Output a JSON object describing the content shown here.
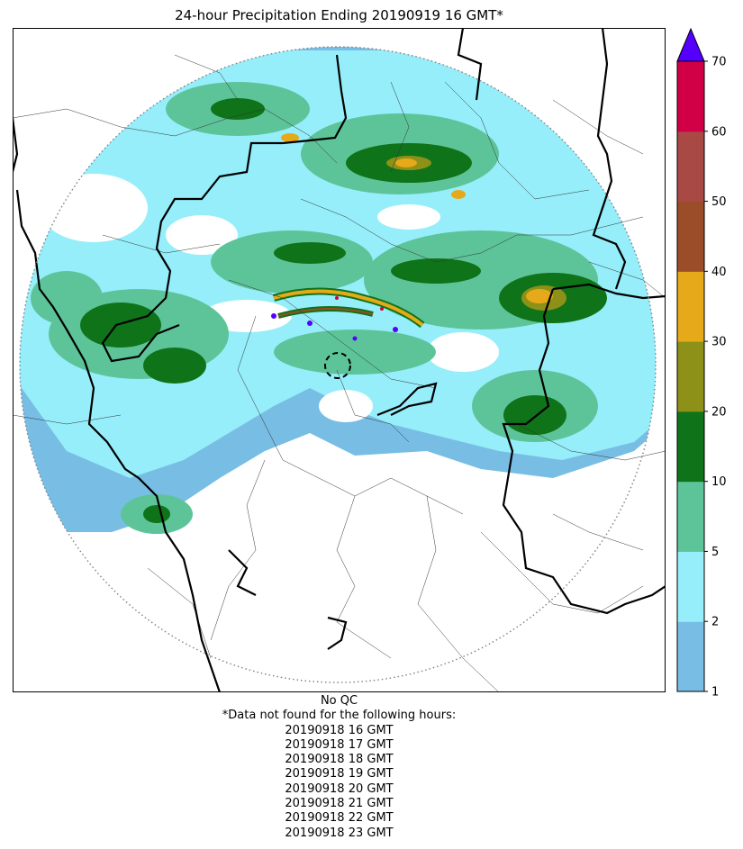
{
  "title": "24-hour Precipitation Ending 20190919 16 GMT*",
  "map": {
    "qc_note": "No QC",
    "missing_note": "*Data not found for the following hours:",
    "missing_hours": [
      "20190918 16 GMT",
      "20190918 17 GMT",
      "20190918 18 GMT",
      "20190918 19 GMT",
      "20190918 20 GMT",
      "20190918 21 GMT",
      "20190918 22 GMT",
      "20190918 23 GMT"
    ]
  },
  "colorbar": {
    "ticks": [
      "1",
      "2",
      "5",
      "10",
      "20",
      "30",
      "40",
      "50",
      "60",
      "70"
    ],
    "bins": [
      {
        "color": "#78bde3"
      },
      {
        "color": "#96eefa"
      },
      {
        "color": "#5dc49a"
      },
      {
        "color": "#0f7319"
      },
      {
        "color": "#8d9117"
      },
      {
        "color": "#e6a919"
      },
      {
        "color": "#9b4c28"
      },
      {
        "color": "#a84945"
      },
      {
        "color": "#d10046"
      }
    ],
    "extend_color": "#5500ff"
  },
  "colors": {
    "border_thick": "#000000",
    "border_thin": "#333333",
    "range_ring": "#808080"
  }
}
